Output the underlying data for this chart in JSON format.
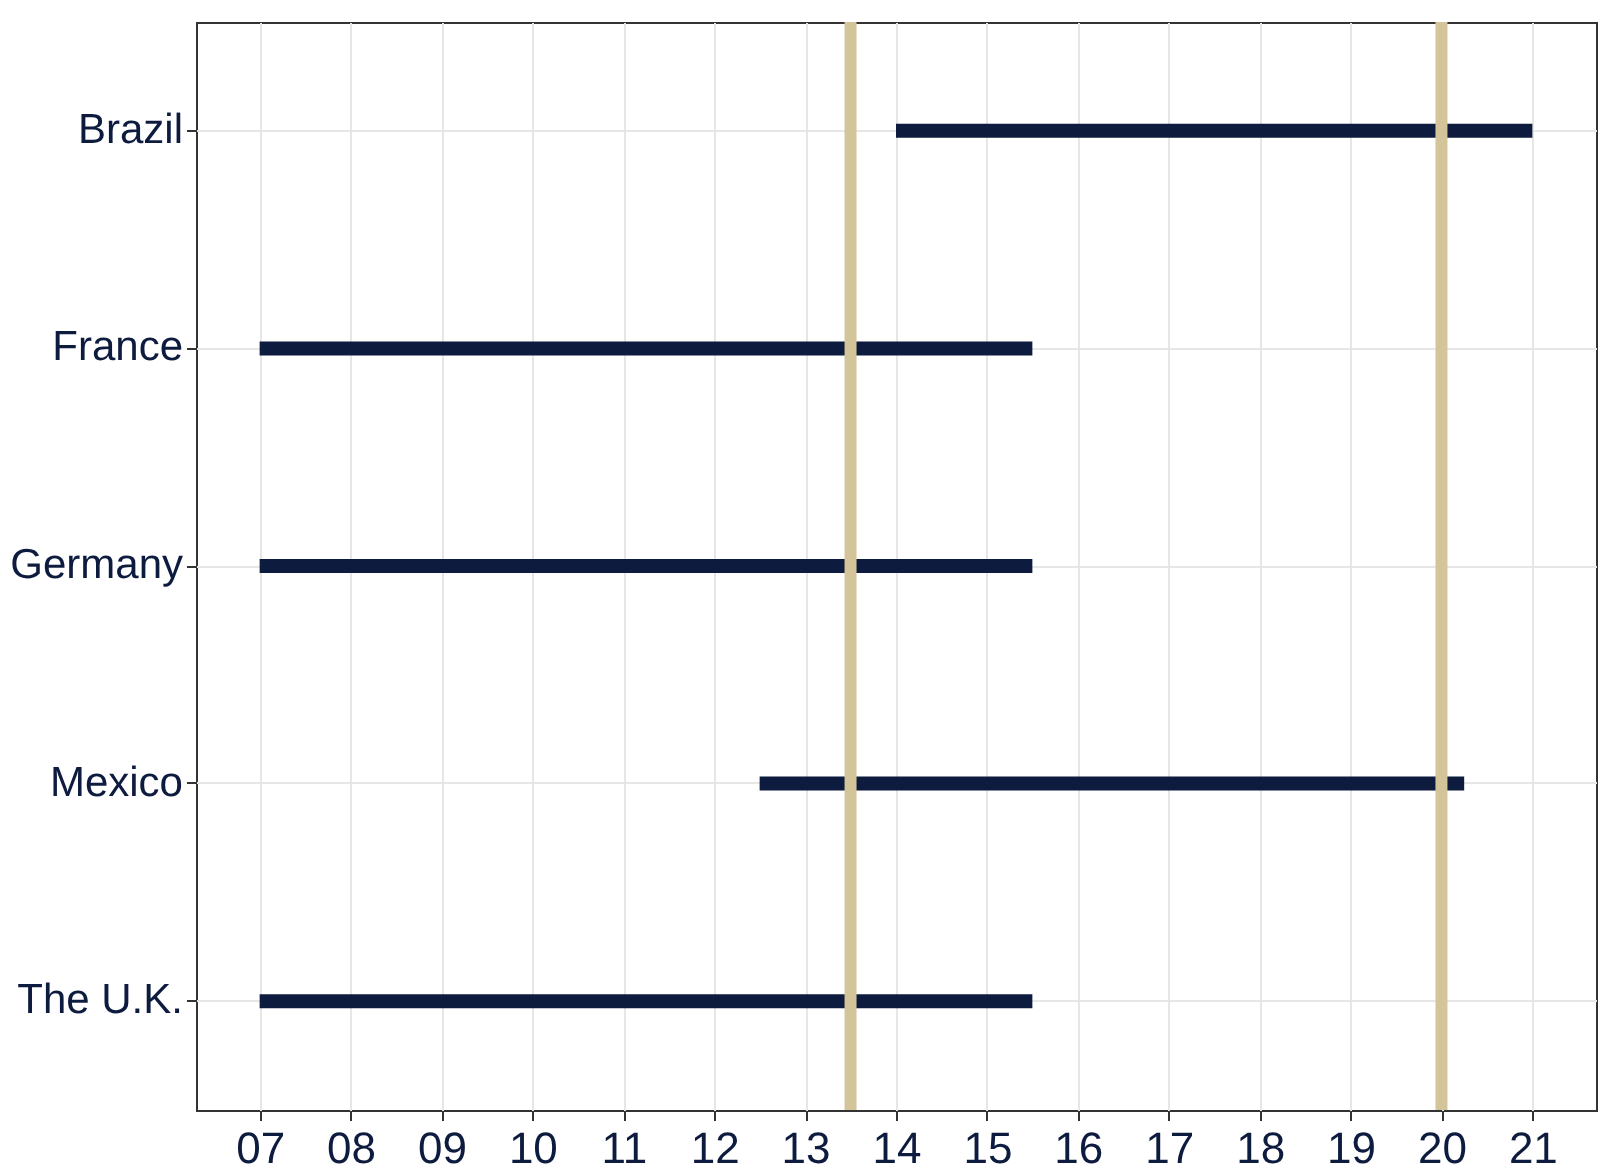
{
  "chart_data": {
    "type": "bar",
    "orientation": "horizontal",
    "categories": [
      "Brazil",
      "France",
      "Germany",
      "Mexico",
      "The U.K."
    ],
    "base": [
      14,
      7,
      7,
      12.5,
      7
    ],
    "values": [
      7,
      8.5,
      8.5,
      7.75,
      8.5
    ],
    "color": "#0d1b3e",
    "xlim": [
      6.3,
      21.7
    ],
    "xticks": [
      {
        "value": 7,
        "label": "07"
      },
      {
        "value": 8,
        "label": "08"
      },
      {
        "value": 9,
        "label": "09"
      },
      10,
      11,
      12,
      13,
      14,
      15,
      16,
      17,
      18,
      19,
      20,
      21
    ],
    "ref_lines": [
      {
        "axis": "x",
        "value": 13.5,
        "color": "#d4c49a"
      },
      {
        "axis": "x",
        "value": 20,
        "color": "#d4c49a"
      }
    ],
    "grid": true
  }
}
